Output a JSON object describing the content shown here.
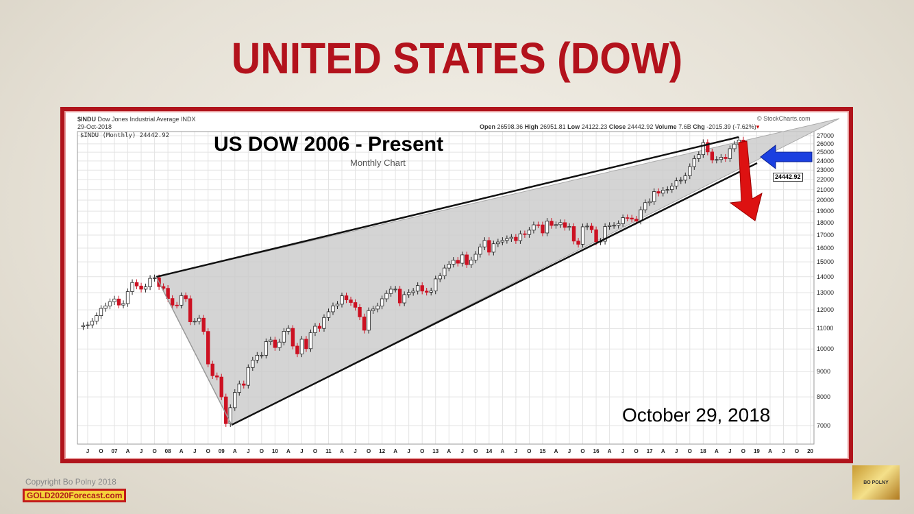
{
  "slide_title": "UNITED STATES (DOW)",
  "chart_header": {
    "symbol": "$INDU",
    "name": "Dow Jones Industrial Average",
    "exchange": "INDX",
    "date": "29-Oct-2018",
    "series_label": "$INDU (Monthly) 24442.92",
    "source": "© StockCharts.com",
    "open_label": "Open",
    "open": "26598.36",
    "high_label": "High",
    "high": "26951.81",
    "low_label": "Low",
    "low": "24122.23",
    "close_label": "Close",
    "close": "24442.92",
    "volume_label": "Volume",
    "volume": "7.6B",
    "chg_label": "Chg",
    "chg": "-2015.39 (-7.62%)"
  },
  "overlay": {
    "title": "US DOW 2006 - Present",
    "subtitle": "Monthly Chart",
    "date_note": "October 29, 2018",
    "price_tag": "24442.92"
  },
  "footer": {
    "copyright": "Copyright Bo Polny 2018",
    "site": "GOLD2020Forecast.com",
    "logo_text": "BO POLNY"
  },
  "colors": {
    "title": "#b3121c",
    "frame": "#b0141c",
    "up": "#ffffff",
    "down": "#cc1122",
    "arrow_blue": "#1a3fe0",
    "arrow_red": "#dd1111"
  },
  "chart_data": {
    "type": "candlestick",
    "title": "US DOW 2006 - Present",
    "subtitle": "Monthly Chart",
    "y_scale": "log",
    "ylim": [
      6500,
      27500
    ],
    "yticks": [
      27000,
      26000,
      25000,
      24000,
      23000,
      22000,
      21000,
      20000,
      19000,
      18000,
      17000,
      16000,
      15000,
      14000,
      13000,
      12000,
      11000,
      10000,
      9000,
      8000,
      7000
    ],
    "xticks": [
      "J",
      "O",
      "07",
      "A",
      "J",
      "O",
      "08",
      "A",
      "J",
      "O",
      "09",
      "A",
      "J",
      "O",
      "10",
      "A",
      "J",
      "O",
      "11",
      "A",
      "J",
      "O",
      "12",
      "A",
      "J",
      "O",
      "13",
      "A",
      "J",
      "O",
      "14",
      "A",
      "J",
      "O",
      "15",
      "A",
      "J",
      "O",
      "16",
      "A",
      "J",
      "O",
      "17",
      "A",
      "J",
      "O",
      "18",
      "A",
      "J",
      "O",
      "19",
      "A",
      "J",
      "O",
      "20"
    ],
    "start": "2006-06",
    "monthly_close": [
      11150,
      11186,
      11381,
      11679,
      12081,
      12221,
      12463,
      12622,
      12269,
      12354,
      13063,
      13628,
      13409,
      13212,
      13358,
      13896,
      13930,
      13372,
      13265,
      12650,
      12266,
      12263,
      12820,
      12638,
      11350,
      11378,
      11544,
      10851,
      9325,
      8829,
      8776,
      8001,
      7063,
      7609,
      8168,
      8500,
      8447,
      9172,
      9496,
      9712,
      9713,
      10345,
      10428,
      10067,
      10325,
      10857,
      11009,
      10137,
      9774,
      10466,
      10015,
      10788,
      11118,
      11006,
      11578,
      11892,
      12226,
      12320,
      12811,
      12570,
      12414,
      12143,
      11614,
      10913,
      11955,
      12046,
      12218,
      12633,
      12952,
      13212,
      13214,
      12393,
      12880,
      13009,
      13091,
      13437,
      13096,
      13026,
      13104,
      13861,
      14054,
      14579,
      14840,
      15116,
      14910,
      15500,
      14810,
      15130,
      15546,
      16086,
      16577,
      15699,
      16322,
      16458,
      16581,
      16717,
      16827,
      16563,
      17098,
      17043,
      17391,
      17828,
      17823,
      17165,
      18133,
      17776,
      17841,
      18011,
      17620,
      17690,
      16528,
      16285,
      17664,
      17720,
      17425,
      16466,
      16517,
      17685,
      17774,
      17787,
      17930,
      18432,
      18401,
      18308,
      18142,
      19124,
      19763,
      19864,
      20812,
      20663,
      20941,
      21009,
      21350,
      21891,
      21948,
      22405,
      23377,
      24272,
      24719,
      26149,
      25029,
      24103,
      24163,
      24416,
      24271,
      25415,
      25965,
      26458,
      24442
    ],
    "trendlines": [
      {
        "name": "upper",
        "from": [
          "2007-10",
          14100
        ],
        "to": [
          "2018-10",
          26950
        ]
      },
      {
        "name": "lower",
        "from": [
          "2009-03",
          7000
        ],
        "to": [
          "2018-12",
          24000
        ]
      }
    ]
  }
}
